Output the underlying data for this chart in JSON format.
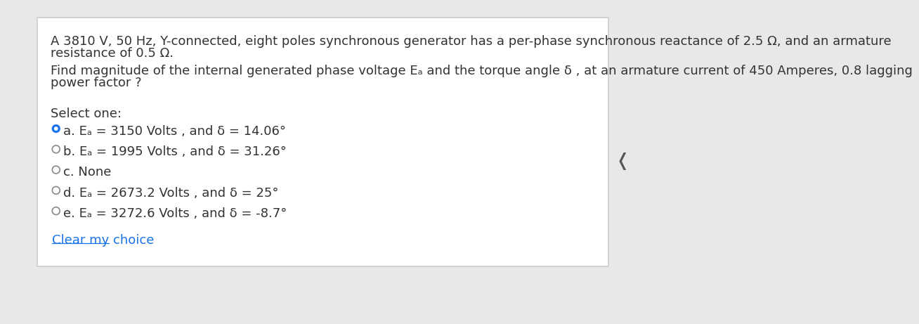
{
  "background_color": "#ffffff",
  "outer_bg_color": "#e8e8e8",
  "box_bg_color": "#ffffff",
  "box_border_color": "#cccccc",
  "title_text_line1": "A 3810 V, 50 Hz, Y-connected, eight poles synchronous generator has a per-phase synchronous reactance of 2.5 Ω, and an armature",
  "title_text_line2": "resistance of 0.5 Ω.",
  "question_line1": "Find magnitude of the internal generated phase voltage Eₐ and the torque angle δ , at an armature current of 450 Amperes, 0.8 lagging",
  "question_line2": "power factor ?",
  "select_one_label": "Select one:",
  "options": [
    {
      "label": "a.",
      "text": " Eₐ = 3150 Volts , and δ = 14.06°",
      "selected": true
    },
    {
      "label": "b.",
      "text": " Eₐ = 1995 Volts , and δ = 31.26°",
      "selected": false
    },
    {
      "label": "c.",
      "text": " None",
      "selected": false
    },
    {
      "label": "d.",
      "text": " Eₐ = 2673.2 Volts , and δ = 25°",
      "selected": false
    },
    {
      "label": "e.",
      "text": " Eₐ = 3272.6 Volts , and δ = -8.7°",
      "selected": false
    }
  ],
  "clear_choice_text": "Clear my choice",
  "radio_selected_color": "#1a73e8",
  "radio_unselected_color": "#ffffff",
  "radio_border_color": "#888888",
  "text_color": "#333333",
  "link_color": "#1a73e8",
  "nav_arrow": "❬",
  "font_size_body": 13,
  "font_size_options": 13,
  "font_size_select": 13
}
